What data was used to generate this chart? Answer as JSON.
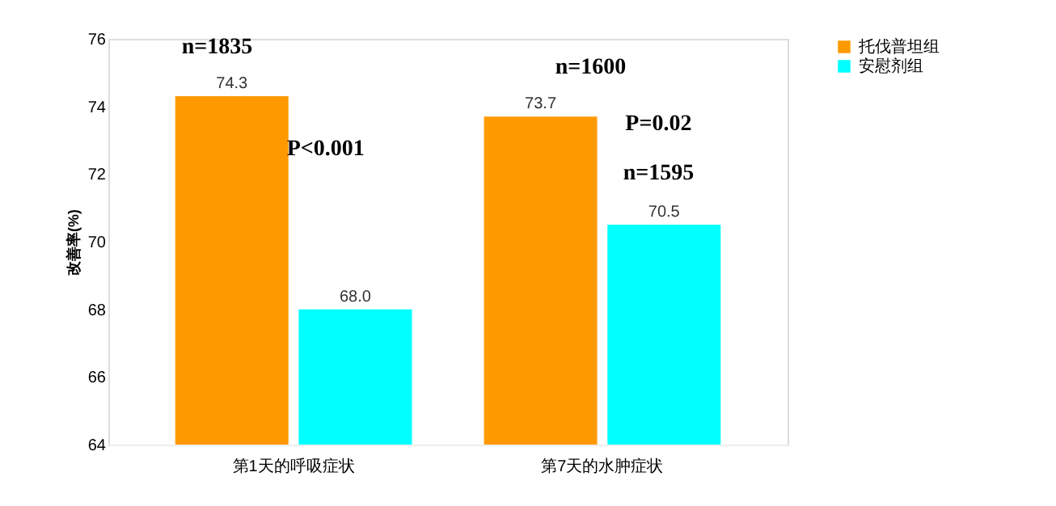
{
  "chart_data": {
    "type": "bar",
    "ylabel": "改善率(%)",
    "categories": [
      "第1天的呼吸症状",
      "第7天的水肿症状"
    ],
    "series": [
      {
        "name": "托伐普坦组",
        "color": "#ff9900",
        "values": [
          74.3,
          73.7
        ],
        "value_labels": [
          "74.3",
          "73.7"
        ]
      },
      {
        "name": "安慰剂组",
        "color": "#00ffff",
        "values": [
          68.0,
          70.5
        ],
        "value_labels": [
          "68.0",
          "70.5"
        ]
      }
    ],
    "ylim": [
      64,
      76
    ],
    "yticks": [
      64,
      66,
      68,
      70,
      72,
      74,
      76
    ],
    "grid": false,
    "legend": "right",
    "annotations": [
      "n=1835",
      "P<0.001",
      "n=1600",
      "P=0.02",
      "n=1595"
    ]
  }
}
